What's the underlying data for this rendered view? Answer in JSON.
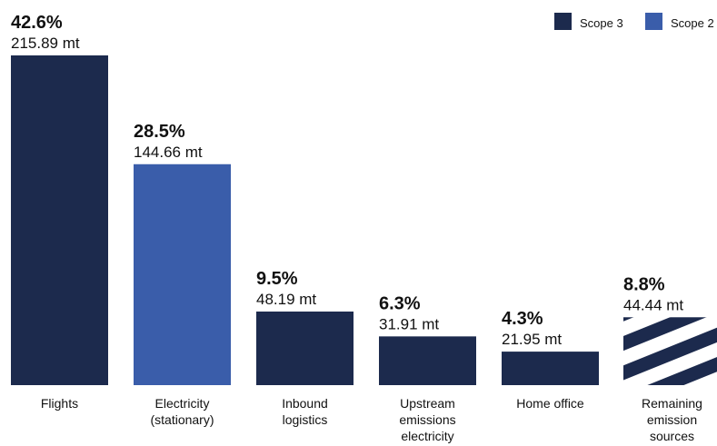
{
  "chart_data": {
    "type": "bar",
    "categories": [
      [
        "Flights"
      ],
      [
        "Electricity",
        "(stationary)"
      ],
      [
        "Inbound",
        "logistics"
      ],
      [
        "Upstream",
        "emissions",
        "electricity"
      ],
      [
        "Home office"
      ],
      [
        "Remaining",
        "emission",
        "sources"
      ]
    ],
    "values": [
      215.89,
      144.66,
      48.19,
      31.91,
      21.95,
      44.44
    ],
    "value_labels": [
      "215.89 mt",
      "144.66 mt",
      "48.19 mt",
      "31.91 mt",
      "21.95 mt",
      "44.44 mt"
    ],
    "percent_labels": [
      "42.6%",
      "28.5%",
      "9.5%",
      "6.3%",
      "4.3%",
      "8.8%"
    ],
    "bar_scope": [
      "Scope 3",
      "Scope 2",
      "Scope 3",
      "Scope 3",
      "Scope 3",
      "Remaining"
    ],
    "legend": [
      {
        "name": "Scope 3",
        "color": "#1c2a4d"
      },
      {
        "name": "Scope 2",
        "color": "#3a5daa"
      }
    ],
    "legend_placement": "top-right",
    "hatched_color": "#1c2a4d",
    "grid": false
  }
}
